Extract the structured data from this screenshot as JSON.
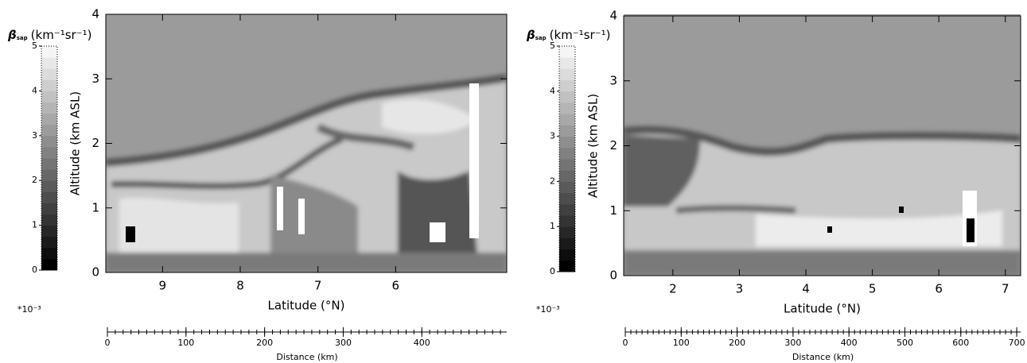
{
  "chart_data": [
    {
      "type": "heatmap",
      "colorbar_symbol": "β",
      "colorbar_subscript": "sap",
      "colorbar_unit": "(km⁻¹sr⁻¹)",
      "colorbar_lim": [
        0,
        5
      ],
      "colorbar_ticks": [
        0,
        1,
        2,
        3,
        4,
        5
      ],
      "colorbar_multiplier": "*10⁻³",
      "ylabel": "Altitude (km ASL)",
      "ylim": [
        0,
        4
      ],
      "yticks": [
        0,
        1,
        2,
        3,
        4
      ],
      "xlabel": "Latitude (°N)",
      "xlim": [
        9.73,
        4.57
      ],
      "xticks": [
        9,
        8,
        7,
        6
      ],
      "x2label": "Distance (km)",
      "x2lim": [
        0,
        508
      ],
      "x2ticks": [
        0,
        100,
        200,
        300,
        400
      ]
    },
    {
      "type": "heatmap",
      "colorbar_symbol": "β",
      "colorbar_subscript": "sap",
      "colorbar_unit": "(km⁻¹sr⁻¹)",
      "colorbar_lim": [
        0,
        5
      ],
      "colorbar_ticks": [
        0,
        1,
        2,
        3,
        4,
        5
      ],
      "colorbar_multiplier": "*10⁻³",
      "ylabel": "Altitude (km ASL)",
      "ylim": [
        0,
        4
      ],
      "yticks": [
        0,
        1,
        2,
        3,
        4
      ],
      "xlabel": "Latitude (°N)",
      "xlim": [
        1.26,
        7.23
      ],
      "xticks": [
        2,
        3,
        4,
        5,
        6,
        7
      ],
      "x2label": "Distance (km)",
      "x2lim": [
        0,
        707
      ],
      "x2ticks": [
        0,
        100,
        200,
        300,
        400,
        500,
        600,
        700
      ]
    }
  ]
}
